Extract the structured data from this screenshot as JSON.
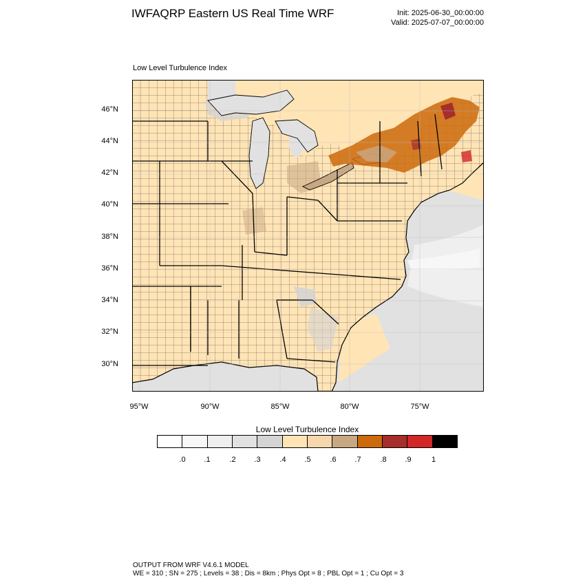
{
  "header": {
    "title": "IWFAQRP Eastern US Real Time WRF",
    "init": "Init: 2025-06-30_00:00:00",
    "valid": "Valid: 2025-07-07_00:00:00"
  },
  "panel": {
    "label": "Low Level Turbulence Index"
  },
  "map": {
    "lat_labels": [
      "46°N",
      "44°N",
      "42°N",
      "40°N",
      "38°N",
      "36°N",
      "34°N",
      "32°N",
      "30°N"
    ],
    "lon_labels": [
      "95°W",
      "90°W",
      "85°W",
      "80°W",
      "75°W"
    ]
  },
  "colorbar": {
    "title": "Low Level Turbulence Index",
    "ticks": [
      ".0",
      ".1",
      ".2",
      ".3",
      ".4",
      ".5",
      ".6",
      ".7",
      ".8",
      ".9",
      "1"
    ],
    "colors": [
      "#ffffff",
      "#f7f7f7",
      "#efefef",
      "#e1e1e1",
      "#d4d4d4",
      "#ffe4b6",
      "#f6d6ab",
      "#c8a883",
      "#cd6a0c",
      "#a62e2b",
      "#d32629",
      "#000000"
    ]
  },
  "footer": {
    "line1": "OUTPUT FROM WRF V4.6.1 MODEL",
    "line2": "WE = 310 ; SN = 275 ; Levels = 38 ; Dis = 8km ; Phys Opt = 8 ; PBL Opt = 1 ; Cu Opt = 3"
  }
}
